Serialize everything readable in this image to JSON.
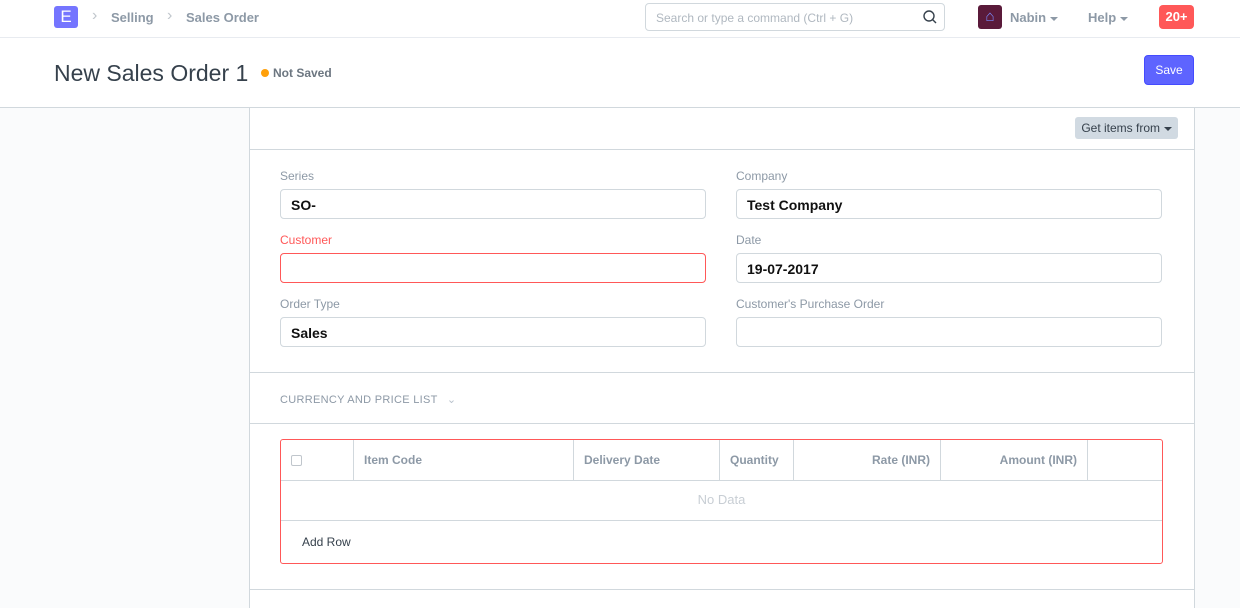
{
  "navbar": {
    "logo": "E",
    "breadcrumbs": [
      "Selling",
      "Sales Order"
    ],
    "search_placeholder": "Search or type a command (Ctrl + G)",
    "user": "Nabin",
    "help": "Help",
    "notifications": "20+"
  },
  "page": {
    "title": "New Sales Order 1",
    "status": "Not Saved",
    "save_label": "Save"
  },
  "form": {
    "get_items_label": "Get items from",
    "fields": {
      "series": {
        "label": "Series",
        "value": "SO-"
      },
      "company": {
        "label": "Company",
        "value": "Test Company"
      },
      "customer": {
        "label": "Customer",
        "value": ""
      },
      "date": {
        "label": "Date",
        "value": "19-07-2017"
      },
      "order_type": {
        "label": "Order Type",
        "value": "Sales"
      },
      "po": {
        "label": "Customer's Purchase Order",
        "value": ""
      }
    },
    "section": "CURRENCY AND PRICE LIST",
    "items_table": {
      "columns": [
        "Item Code",
        "Delivery Date",
        "Quantity",
        "Rate (INR)",
        "Amount (INR)"
      ],
      "empty": "No Data",
      "add_row": "Add Row"
    }
  },
  "colors": {
    "accent": "#5e64ff",
    "error": "#ff5858",
    "status": "#ffa00a"
  }
}
